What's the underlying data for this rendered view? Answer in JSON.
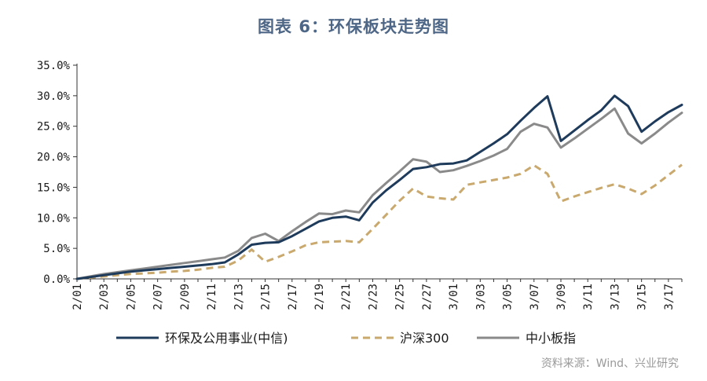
{
  "title": "图表 6：环保板块走势图",
  "source": "资料来源：Wind、兴业研究",
  "chart_data": {
    "type": "line",
    "title": "图表 6：环保板块走势图",
    "xlabel": "",
    "ylabel": "",
    "ylim": [
      0,
      35
    ],
    "y_ticks": [
      "0.0%",
      "5.0%",
      "10.0%",
      "15.0%",
      "20.0%",
      "25.0%",
      "30.0%",
      "35.0%"
    ],
    "x_ticks": [
      "2/01",
      "2/03",
      "2/05",
      "2/07",
      "2/09",
      "2/11",
      "2/13",
      "2/15",
      "2/17",
      "2/19",
      "2/21",
      "2/23",
      "2/25",
      "2/27",
      "3/01",
      "3/03",
      "3/05",
      "3/07",
      "3/09",
      "3/11",
      "3/13",
      "3/15",
      "3/17"
    ],
    "grid": false,
    "legend_position": "bottom",
    "x": [
      "2/01",
      "2/02",
      "2/03",
      "2/04",
      "2/05",
      "2/06",
      "2/07",
      "2/08",
      "2/09",
      "2/10",
      "2/11",
      "2/12",
      "2/13",
      "2/14",
      "2/15",
      "2/16",
      "2/17",
      "2/18",
      "2/19",
      "2/20",
      "2/21",
      "2/22",
      "2/23",
      "2/24",
      "2/25",
      "2/26",
      "2/27",
      "2/28",
      "3/01",
      "3/02",
      "3/03",
      "3/04",
      "3/05",
      "3/06",
      "3/07",
      "3/08",
      "3/09",
      "3/10",
      "3/11",
      "3/12",
      "3/13",
      "3/14",
      "3/15",
      "3/16",
      "3/17",
      "3/18"
    ],
    "series": [
      {
        "name": "环保及公用事业(中信)",
        "color": "#1f3b5c",
        "style": "solid",
        "values": [
          0,
          0.3,
          0.6,
          0.9,
          1.2,
          1.4,
          1.6,
          1.8,
          2.0,
          2.2,
          2.4,
          2.7,
          4.0,
          5.6,
          5.9,
          6.0,
          7.0,
          8.2,
          9.4,
          10.0,
          10.2,
          9.6,
          12.5,
          14.5,
          16.2,
          18.0,
          18.3,
          18.8,
          18.9,
          19.4,
          20.8,
          22.2,
          23.7,
          25.9,
          28.0,
          29.9,
          22.6,
          24.3,
          26.0,
          27.6,
          30.0,
          28.3,
          24.1,
          25.8,
          27.3,
          28.5
        ]
      },
      {
        "name": "沪深300",
        "color": "#c9a96e",
        "style": "dashed",
        "values": [
          0,
          0.2,
          0.4,
          0.6,
          0.8,
          0.9,
          1.0,
          1.2,
          1.3,
          1.5,
          1.8,
          2.0,
          3.0,
          4.8,
          2.8,
          3.6,
          4.5,
          5.5,
          6.0,
          6.1,
          6.2,
          6.0,
          8.2,
          10.5,
          12.8,
          14.8,
          13.5,
          13.2,
          13.0,
          15.4,
          15.8,
          16.2,
          16.6,
          17.2,
          18.6,
          17.2,
          12.7,
          13.5,
          14.2,
          14.9,
          15.5,
          14.8,
          13.9,
          15.3,
          17.0,
          18.7
        ]
      },
      {
        "name": "中小板指",
        "color": "#8a8a8a",
        "style": "solid",
        "values": [
          0,
          0.4,
          0.8,
          1.1,
          1.4,
          1.7,
          2.0,
          2.3,
          2.6,
          2.9,
          3.2,
          3.5,
          4.6,
          6.7,
          7.4,
          6.2,
          7.8,
          9.3,
          10.7,
          10.6,
          11.2,
          10.9,
          13.7,
          15.7,
          17.6,
          19.6,
          19.2,
          17.5,
          17.8,
          18.5,
          19.3,
          20.2,
          21.3,
          24.1,
          25.4,
          24.8,
          21.5,
          23.0,
          24.6,
          26.2,
          27.9,
          23.8,
          22.2,
          23.8,
          25.6,
          27.2
        ]
      }
    ]
  }
}
